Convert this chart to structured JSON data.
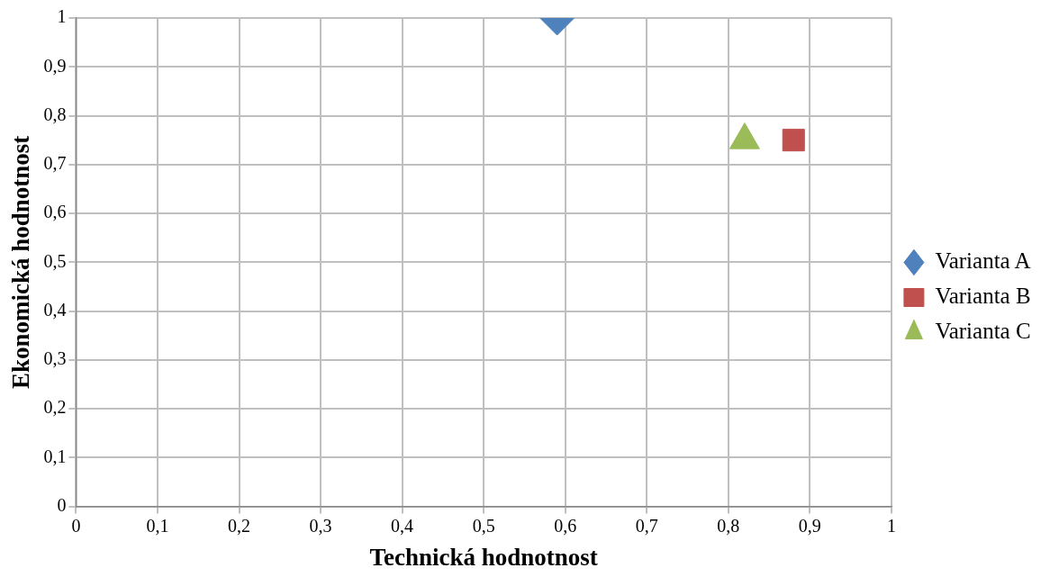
{
  "chart_data": {
    "type": "scatter",
    "xlabel": "Technická hodnotnost",
    "ylabel": "Ekonomická hodnotnost",
    "series": [
      {
        "name": "Varianta A",
        "color": "#4f81bd",
        "marker": "diamond",
        "x": [
          0.59
        ],
        "values": [
          1
        ]
      },
      {
        "name": "Varianta B",
        "color": "#c0504d",
        "marker": "square",
        "x": [
          0.88
        ],
        "values": [
          0.75
        ]
      },
      {
        "name": "Varianta C",
        "color": "#9bbb59",
        "marker": "triangle",
        "x": [
          0.82
        ],
        "values": [
          0.75
        ]
      }
    ],
    "xlim": [
      0,
      1
    ],
    "ylim": [
      0,
      1
    ],
    "xticks": [
      0,
      {
        "value": 0.1,
        "label": "0,1"
      },
      {
        "value": 0.2,
        "label": "0,2"
      },
      {
        "value": 0.3,
        "label": "0,3"
      },
      {
        "value": 0.4,
        "label": "0,4"
      },
      {
        "value": 0.5,
        "label": "0,5"
      },
      {
        "value": 0.6,
        "label": "0,6"
      },
      {
        "value": 0.7,
        "label": "0,7"
      },
      {
        "value": 0.8,
        "label": "0,8"
      },
      {
        "value": 0.9,
        "label": "0,9"
      },
      1
    ],
    "yticks": [
      0,
      {
        "value": 0.1,
        "label": "0,1"
      },
      {
        "value": 0.2,
        "label": "0,2"
      },
      {
        "value": 0.3,
        "label": "0,3"
      },
      {
        "value": 0.4,
        "label": "0,4"
      },
      {
        "value": 0.5,
        "label": "0,5"
      },
      {
        "value": 0.6,
        "label": "0,6"
      },
      {
        "value": 0.7,
        "label": "0,7"
      },
      {
        "value": 0.8,
        "label": "0,8"
      },
      {
        "value": 0.9,
        "label": "0,9"
      },
      1
    ],
    "grid": true,
    "legend": "right"
  }
}
